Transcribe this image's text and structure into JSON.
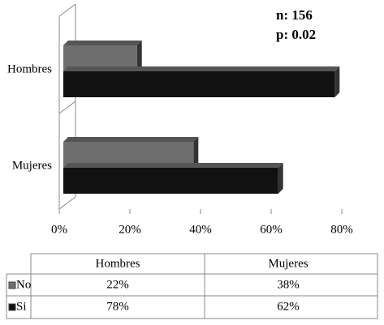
{
  "chart_data": {
    "type": "bar",
    "orientation": "horizontal",
    "annotations": [
      "n: 156",
      "p: 0.02"
    ],
    "categories": [
      "Mujeres",
      "Hombres"
    ],
    "series": [
      {
        "name": "No",
        "color": "#6e6e6e",
        "values": [
          38,
          22
        ],
        "value_labels": [
          "38%",
          "22%"
        ]
      },
      {
        "name": "Si",
        "color": "#111111",
        "values": [
          62,
          78
        ],
        "value_labels": [
          "62%",
          "78%"
        ]
      }
    ],
    "xlim": [
      0,
      80
    ],
    "xticks": [
      {
        "value": 0,
        "label": "0%"
      },
      {
        "value": 20,
        "label": "20%"
      },
      {
        "value": 40,
        "label": "40%"
      },
      {
        "value": 60,
        "label": "60%"
      },
      {
        "value": 80,
        "label": "80%"
      }
    ]
  }
}
